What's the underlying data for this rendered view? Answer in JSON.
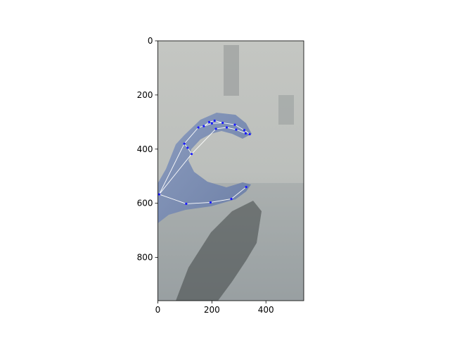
{
  "figure": {
    "image_description": "photograph of a hand forming a C-shape against a gray wall, with hand landmark skeleton overlay",
    "image_width_units": 540,
    "image_height_units": 960
  },
  "axes": {
    "x_ticks": [
      {
        "value": 0,
        "label": "0"
      },
      {
        "value": 200,
        "label": "200"
      },
      {
        "value": 400,
        "label": "400"
      }
    ],
    "y_ticks": [
      {
        "value": 0,
        "label": "0"
      },
      {
        "value": 200,
        "label": "200"
      },
      {
        "value": 400,
        "label": "400"
      },
      {
        "value": 600,
        "label": "600"
      },
      {
        "value": 800,
        "label": "800"
      }
    ],
    "xlim": [
      0,
      540
    ],
    "ylim": [
      960,
      0
    ]
  },
  "landmarks": {
    "points": [
      [
        5,
        567
      ],
      [
        105,
        602
      ],
      [
        195,
        597
      ],
      [
        272,
        584
      ],
      [
        327,
        540
      ],
      [
        98,
        380
      ],
      [
        125,
        418
      ],
      [
        170,
        315
      ],
      [
        200,
        305
      ],
      [
        240,
        303
      ],
      [
        285,
        310
      ],
      [
        320,
        330
      ],
      [
        340,
        345
      ],
      [
        215,
        325
      ],
      [
        255,
        320
      ],
      [
        290,
        328
      ],
      [
        325,
        342
      ],
      [
        110,
        395
      ],
      [
        150,
        320
      ],
      [
        190,
        300
      ],
      [
        210,
        295
      ]
    ],
    "connections": [
      [
        0,
        1
      ],
      [
        1,
        2
      ],
      [
        2,
        3
      ],
      [
        3,
        4
      ],
      [
        0,
        5
      ],
      [
        5,
        17
      ],
      [
        17,
        6
      ],
      [
        0,
        6
      ],
      [
        5,
        18
      ],
      [
        18,
        7
      ],
      [
        7,
        19
      ],
      [
        19,
        20
      ],
      [
        6,
        13
      ],
      [
        13,
        14
      ],
      [
        14,
        15
      ],
      [
        15,
        16
      ],
      [
        7,
        8
      ],
      [
        8,
        9
      ],
      [
        9,
        10
      ],
      [
        10,
        11
      ],
      [
        11,
        12
      ],
      [
        20,
        9
      ]
    ],
    "point_color": "#1a1aff",
    "line_color": "#ffffff"
  }
}
